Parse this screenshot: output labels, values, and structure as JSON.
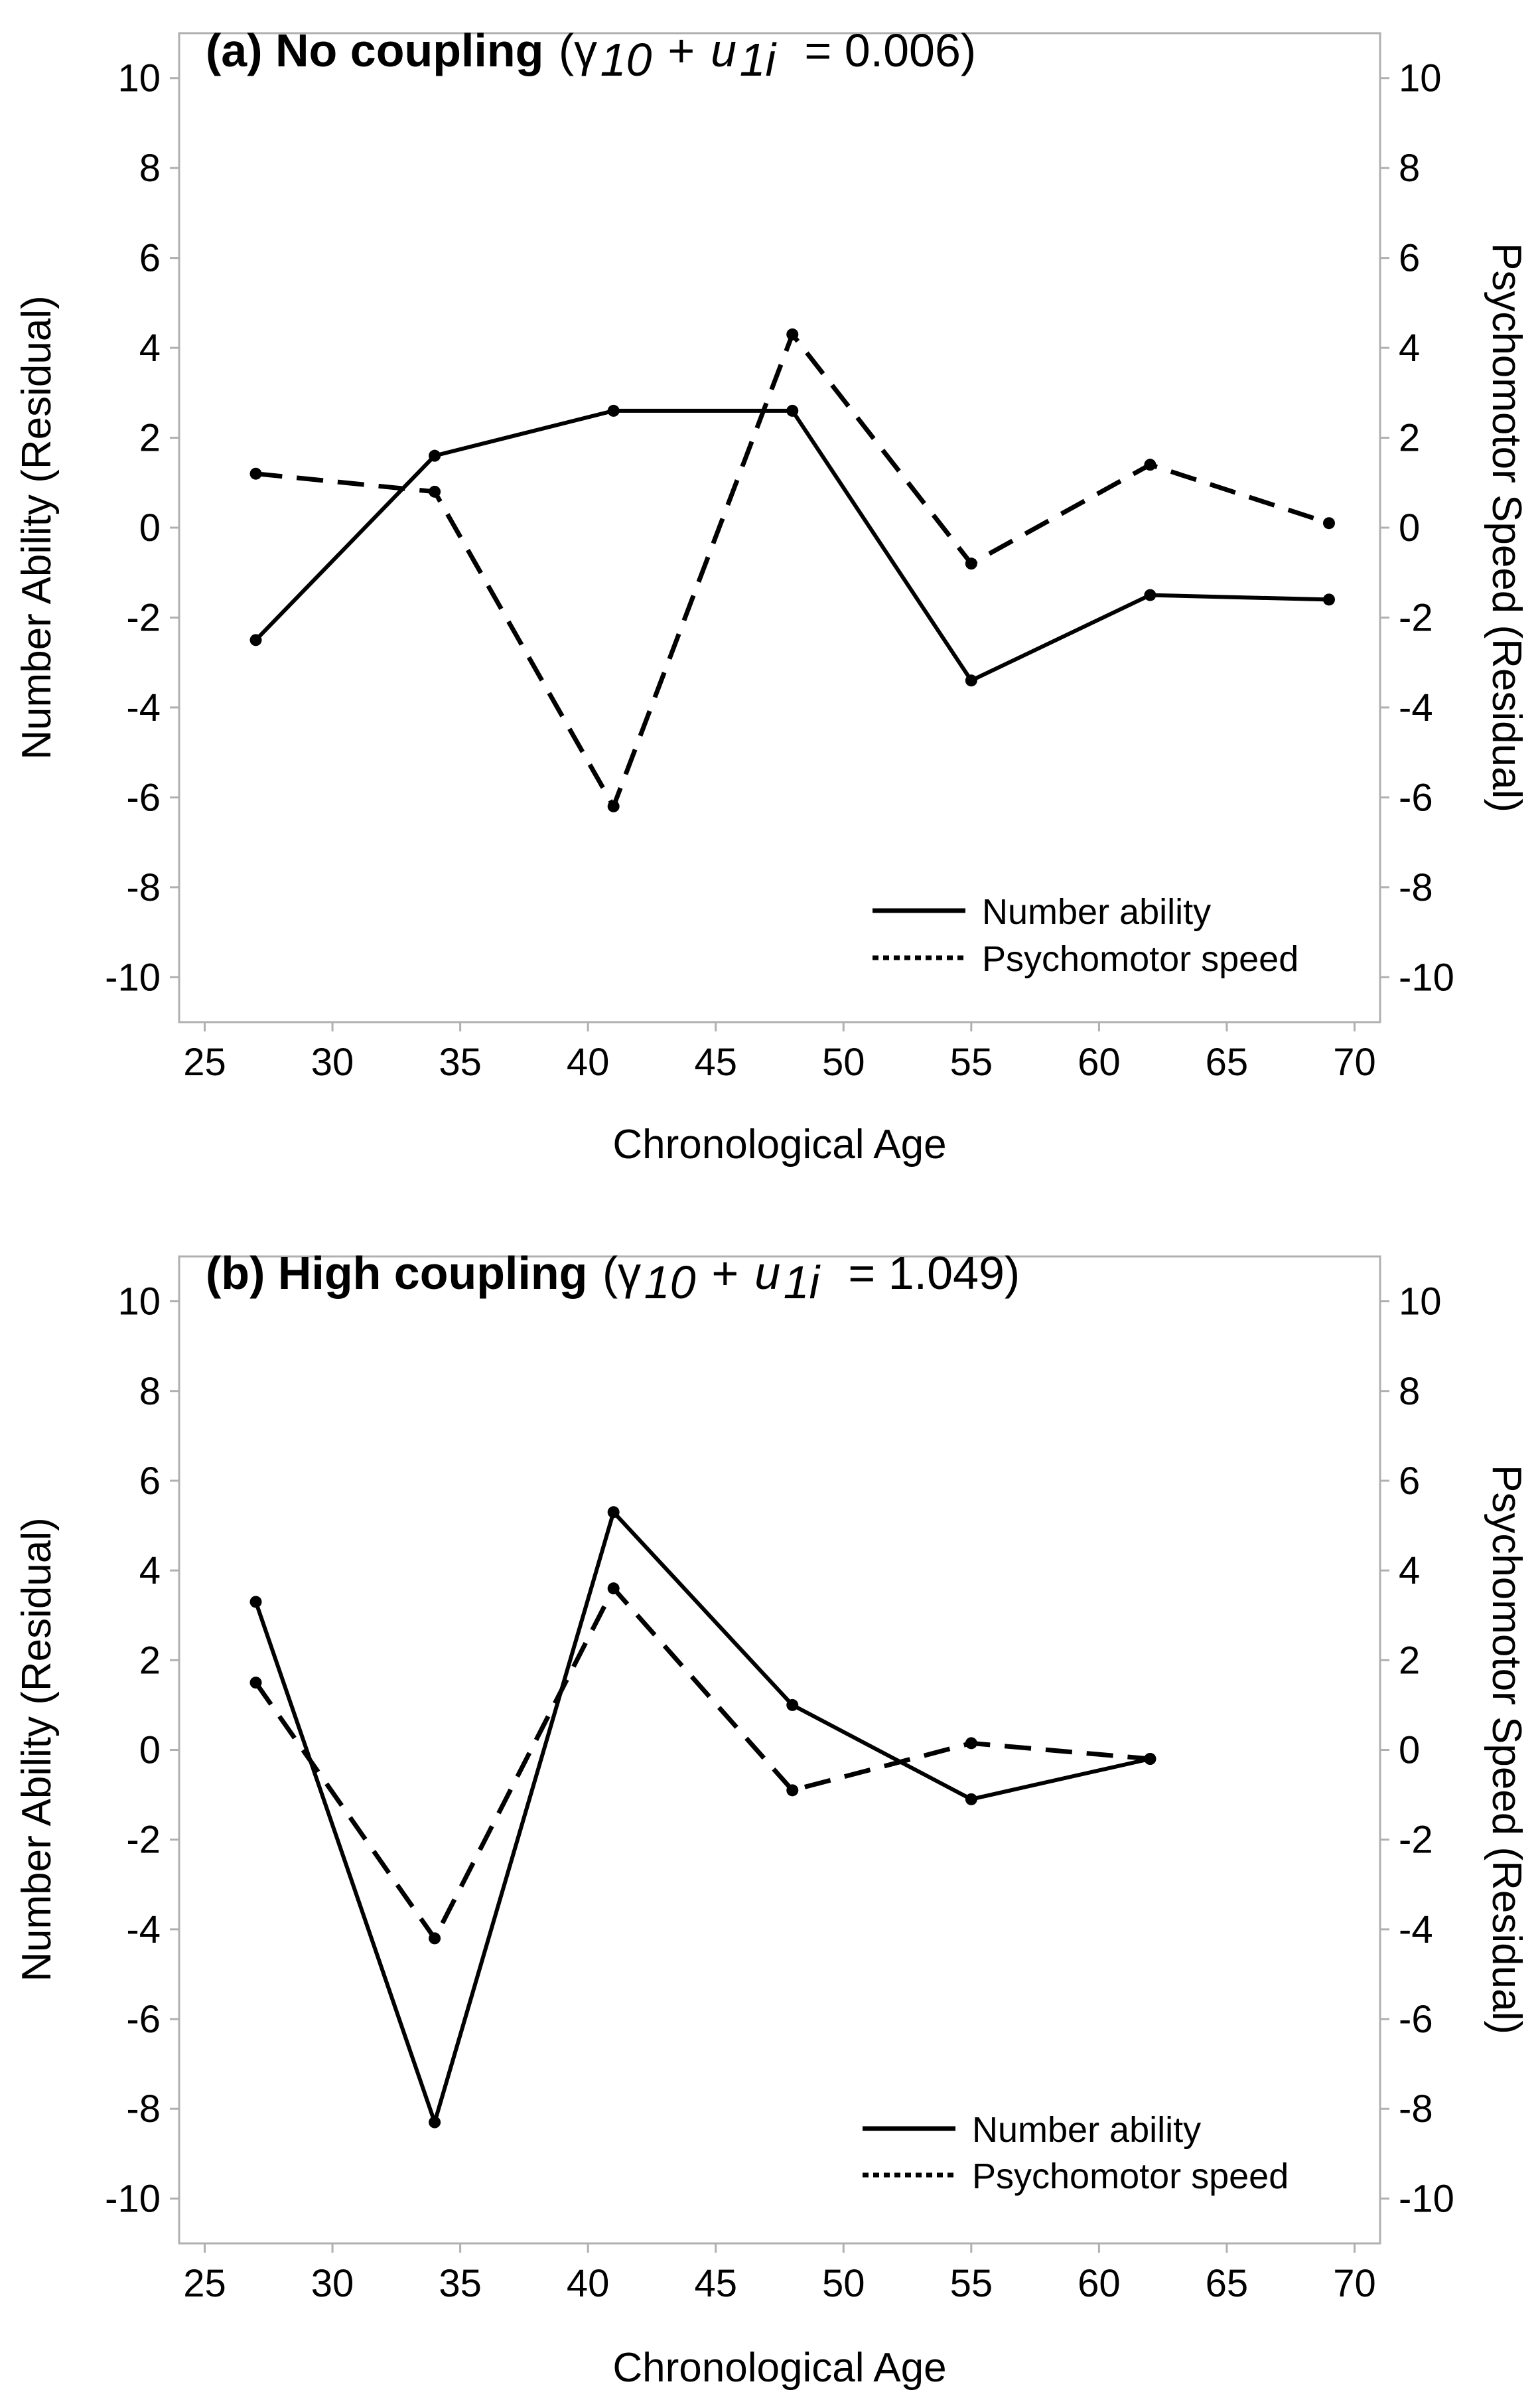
{
  "chart_data": [
    {
      "type": "line",
      "panel_id": "a",
      "title_bold": "(a) No coupling",
      "title_open": "(γ",
      "title_sub1": "10",
      "title_plus": " + ",
      "title_u": "u",
      "title_sub2": "1i",
      "title_value": "  = 0.006)",
      "xlabel": "Chronological Age",
      "ylabel": "Number Ability (Residual)",
      "ylabel_right": "Psychomotor Speed (Residual)",
      "xlim": [
        24,
        71
      ],
      "ylim": [
        -11,
        11
      ],
      "xticks": [
        25,
        30,
        35,
        40,
        45,
        50,
        55,
        60,
        65,
        70
      ],
      "yticks": [
        -10,
        -8,
        -6,
        -4,
        -2,
        0,
        2,
        4,
        6,
        8,
        10
      ],
      "legend_position": "bottom-right",
      "series": [
        {
          "name": "Number ability",
          "style": "solid",
          "x": [
            27,
            34,
            41,
            48,
            55,
            62,
            69
          ],
          "values": [
            -2.5,
            1.6,
            2.6,
            2.6,
            -3.4,
            -1.5,
            -1.6
          ]
        },
        {
          "name": "Psychomotor speed",
          "style": "dashed",
          "x": [
            27,
            34,
            41,
            48,
            55,
            62,
            69
          ],
          "values": [
            1.2,
            0.8,
            -6.2,
            4.3,
            -0.8,
            1.4,
            0.1
          ]
        }
      ]
    },
    {
      "type": "line",
      "panel_id": "b",
      "title_bold": "(b) High coupling",
      "title_open": "(γ",
      "title_sub1": "10",
      "title_plus": " + ",
      "title_u": "u",
      "title_sub2": "1i",
      "title_value": "  = 1.049)",
      "xlabel": "Chronological Age",
      "ylabel": "Number Ability (Residual)",
      "ylabel_right": "Psychomotor Speed (Residual)",
      "xlim": [
        24,
        71
      ],
      "ylim": [
        -11,
        11
      ],
      "xticks": [
        25,
        30,
        35,
        40,
        45,
        50,
        55,
        60,
        65,
        70
      ],
      "yticks": [
        -10,
        -8,
        -6,
        -4,
        -2,
        0,
        2,
        4,
        6,
        8,
        10
      ],
      "legend_position": "bottom-right",
      "series": [
        {
          "name": "Number ability",
          "style": "solid",
          "x": [
            27,
            34,
            41,
            48,
            55,
            62
          ],
          "values": [
            3.3,
            -8.3,
            5.3,
            1.0,
            -1.1,
            -0.2
          ]
        },
        {
          "name": "Psychomotor speed",
          "style": "dashed",
          "x": [
            27,
            34,
            41,
            48,
            55,
            62
          ],
          "values": [
            1.5,
            -4.2,
            3.6,
            -0.9,
            0.15,
            -0.2
          ]
        }
      ]
    }
  ]
}
